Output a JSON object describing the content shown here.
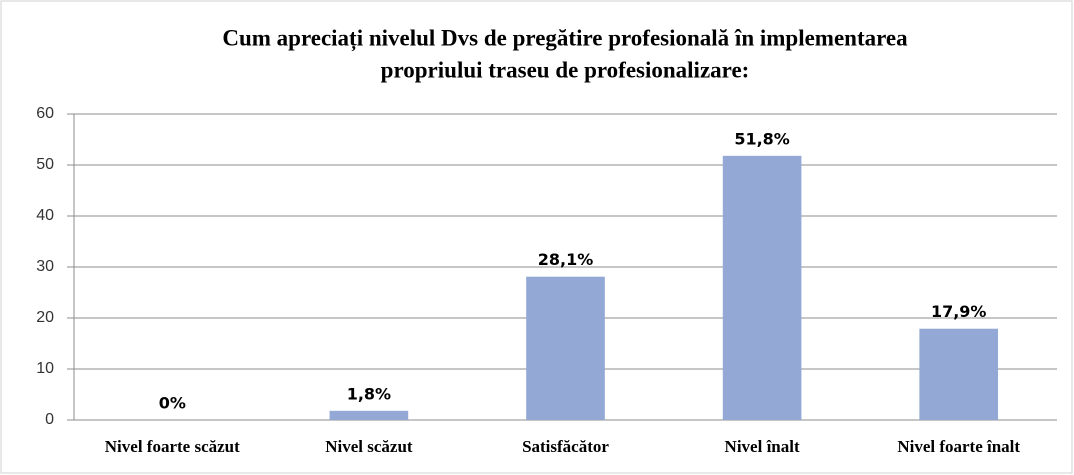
{
  "chart_data": {
    "type": "bar",
    "title": [
      "Cum apreciați nivelul Dvs de pregătire profesională în implementarea",
      "propriului traseu de profesionalizare:"
    ],
    "categories": [
      "Nivel foarte scăzut",
      "Nivel scăzut",
      "Satisfăcător",
      "Nivel înalt",
      "Nivel foarte înalt"
    ],
    "values": [
      0,
      1.8,
      28.1,
      51.8,
      17.9
    ],
    "value_labels": [
      "0%",
      "1,8%",
      "28,1%",
      "51,8%",
      "17,9%"
    ],
    "color": "#94a8d5",
    "ylim": [
      0,
      60
    ],
    "yticks": [
      0,
      10,
      20,
      30,
      40,
      50,
      60
    ],
    "grid": true
  }
}
